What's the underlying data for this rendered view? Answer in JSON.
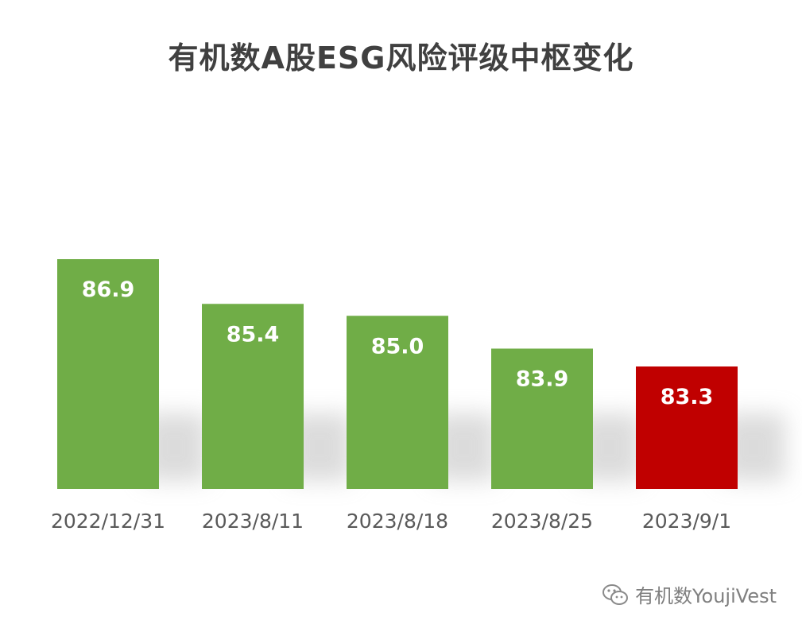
{
  "chart_data": {
    "type": "bar",
    "title": "有机数A股ESG风险评级中枢变化",
    "categories": [
      "2022/12/31",
      "2023/8/11",
      "2023/8/18",
      "2023/8/25",
      "2023/9/1"
    ],
    "values": [
      86.9,
      85.4,
      85.0,
      83.9,
      83.3
    ],
    "value_labels": [
      "86.9",
      "85.4",
      "85.0",
      "83.9",
      "83.3"
    ],
    "colors": [
      "#70ad47",
      "#70ad47",
      "#70ad47",
      "#70ad47",
      "#c00000"
    ],
    "xlabel": "",
    "ylabel": "",
    "grid": false,
    "legend": "none"
  },
  "watermark": {
    "icon": "wechat-icon",
    "text": "有机数YoujiVest"
  }
}
